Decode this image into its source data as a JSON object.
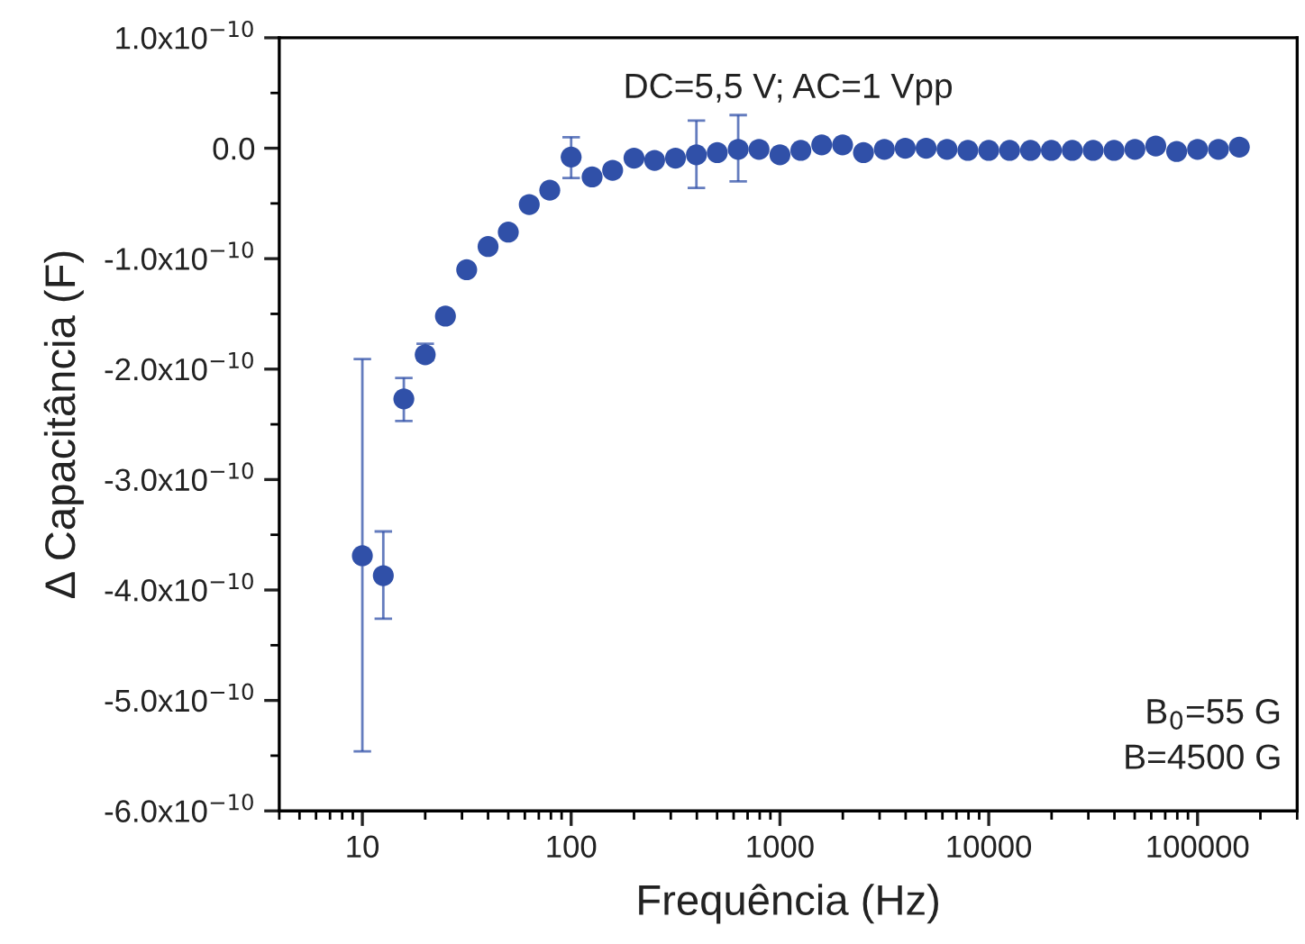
{
  "chart_data": {
    "type": "scatter",
    "xlabel": "Frequência (Hz)",
    "ylabel": "Δ Capacitância (F)",
    "log": "x",
    "marker": "circle",
    "grid": false,
    "legend": false,
    "xlim": [
      4,
      300000
    ],
    "xticks": [
      10,
      100,
      1000,
      10000,
      100000
    ],
    "ylim": [
      -6e-10,
      1e-10
    ],
    "yticks": [
      {
        "value": 1e-10,
        "label": "1.0x10$^{−10}$"
      },
      {
        "value": 0,
        "label": "0.0"
      },
      {
        "value": -1e-10,
        "label": "-1.0x10$^{−10}$"
      },
      {
        "value": -2e-10,
        "label": "-2.0x10$^{−10}$"
      },
      {
        "value": -3e-10,
        "label": "-3.0x10$^{−10}$"
      },
      {
        "value": -4e-10,
        "label": "-4.0x10$^{−10}$"
      },
      {
        "value": -5e-10,
        "label": "-5.0x10$^{−10}$"
      },
      {
        "value": -6e-10,
        "label": "-6.0x10$^{−10}$"
      }
    ],
    "annotations": [
      "DC=5,5 V; AC=1 Vpp",
      "B$_{0}$=55 G\nB=4500 G"
    ],
    "series": [
      {
        "color": "#3050a8",
        "x": [
          10,
          12.6,
          15.8,
          20,
          25,
          31.6,
          40,
          50,
          63,
          79,
          100,
          126,
          158,
          200,
          251,
          316,
          398,
          501,
          631,
          794,
          1000,
          1259,
          1585,
          1995,
          2512,
          3162,
          3981,
          5012,
          6310,
          7943,
          10000,
          12589,
          15849,
          19953,
          25119,
          31623,
          39811,
          50119,
          63096,
          79433,
          100000,
          125893,
          158489
        ],
        "values": [
          -3.69e-10,
          -3.87e-10,
          -2.27e-10,
          -1.87e-10,
          -1.52e-10,
          -1.1e-10,
          -8.9e-11,
          -7.6e-11,
          -5.1e-11,
          -3.8e-11,
          -8e-12,
          -2.6e-11,
          -2e-11,
          -9e-12,
          -1.1e-11,
          -9e-12,
          -6e-12,
          -4e-12,
          -1e-12,
          -1e-12,
          -6e-12,
          -2e-12,
          3e-12,
          3e-12,
          -4e-12,
          -1e-12,
          0.0,
          0.0,
          -1e-12,
          -2e-12,
          -2e-12,
          -2e-12,
          -2e-12,
          -2e-12,
          -2e-12,
          -2e-12,
          -2e-12,
          -1e-12,
          2e-12,
          -3e-12,
          -1e-12,
          -1e-12,
          1e-12
        ],
        "errors": [
          [
            -5.46e-10,
            -1.91e-10
          ],
          [
            -4.26e-10,
            -3.47e-10
          ],
          [
            -2.47e-10,
            -2.08e-10
          ],
          [
            -1.92e-10,
            -1.77e-10
          ],
          null,
          null,
          null,
          null,
          null,
          null,
          [
            -2.7e-11,
            1e-11
          ],
          null,
          null,
          null,
          null,
          null,
          [
            -3.6e-11,
            2.5e-11
          ],
          null,
          [
            -3e-11,
            3e-11
          ],
          null,
          null,
          null,
          null,
          null,
          null,
          null,
          null,
          null,
          null,
          null,
          null,
          null,
          null,
          null,
          null,
          null,
          null,
          null,
          null,
          null,
          null,
          null,
          null
        ]
      }
    ]
  }
}
